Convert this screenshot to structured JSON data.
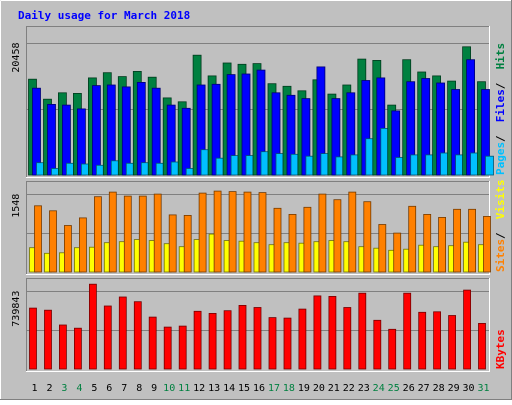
{
  "chart_data": [
    {
      "type": "bar",
      "title": "Daily usage for March 2018",
      "categories": [
        "1",
        "2",
        "3",
        "4",
        "5",
        "6",
        "7",
        "8",
        "9",
        "10",
        "11",
        "12",
        "13",
        "14",
        "15",
        "16",
        "17",
        "18",
        "19",
        "20",
        "21",
        "22",
        "23",
        "24",
        "25",
        "26",
        "27",
        "28",
        "29",
        "30",
        "31"
      ],
      "weekend_days": [
        "3",
        "4",
        "10",
        "11",
        "17",
        "18",
        "24",
        "25",
        "31"
      ],
      "ytick": "20458",
      "ylim": [
        0,
        22700
      ],
      "series": [
        {
          "name": "Hits",
          "color": "#008040",
          "values": [
            14800,
            11700,
            12700,
            12600,
            15000,
            15800,
            15200,
            16000,
            15100,
            11900,
            11300,
            18500,
            15300,
            17300,
            17100,
            17200,
            14100,
            13700,
            13000,
            14700,
            12500,
            13900,
            17900,
            17700,
            10800,
            17800,
            15900,
            15300,
            14500,
            19800,
            14400
          ]
        },
        {
          "name": "Files",
          "color": "#0000ff",
          "values": [
            13400,
            10900,
            10800,
            10200,
            13800,
            13900,
            13600,
            14300,
            13400,
            10800,
            10300,
            13900,
            14000,
            15500,
            15600,
            16200,
            12700,
            12300,
            11800,
            16700,
            11800,
            12700,
            14600,
            15000,
            9900,
            14400,
            14900,
            14200,
            13200,
            17800,
            13200
          ]
        },
        {
          "name": "Pages",
          "color": "#00c0ff",
          "values": [
            1900,
            1000,
            1800,
            1700,
            1500,
            2200,
            1800,
            1900,
            1800,
            2000,
            1000,
            3900,
            2600,
            3000,
            3000,
            3600,
            3300,
            3200,
            2900,
            3300,
            2800,
            3100,
            5600,
            7200,
            2700,
            3100,
            3100,
            3400,
            3100,
            3400,
            2900
          ]
        }
      ]
    },
    {
      "type": "bar",
      "ytick": "1548",
      "ylim": [
        0,
        1760
      ],
      "series": [
        {
          "name": "Visits",
          "color": "#ffff00",
          "values": [
            480,
            370,
            380,
            480,
            490,
            580,
            600,
            640,
            620,
            560,
            500,
            640,
            750,
            620,
            610,
            580,
            540,
            580,
            570,
            600,
            620,
            600,
            500,
            470,
            430,
            450,
            530,
            500,
            520,
            590,
            540
          ]
        },
        {
          "name": "Sites",
          "color": "#ff8000",
          "values": [
            1310,
            1210,
            920,
            1070,
            1490,
            1580,
            1500,
            1500,
            1540,
            1130,
            1120,
            1560,
            1600,
            1590,
            1580,
            1570,
            1260,
            1140,
            1280,
            1540,
            1430,
            1580,
            1390,
            940,
            770,
            1300,
            1140,
            1080,
            1240,
            1240,
            1100
          ]
        }
      ]
    },
    {
      "type": "bar",
      "ytick": "739843",
      "ylim": [
        0,
        840000
      ],
      "series": [
        {
          "name": "KBytes",
          "color": "#ff0000",
          "values": [
            575000,
            555000,
            415000,
            385000,
            800000,
            595000,
            680000,
            635000,
            490000,
            395000,
            405000,
            545000,
            525000,
            550000,
            600000,
            580000,
            485000,
            480000,
            565000,
            690000,
            685000,
            580000,
            715000,
            460000,
            375000,
            715000,
            535000,
            540000,
            505000,
            745000,
            430000
          ]
        }
      ]
    }
  ]
}
